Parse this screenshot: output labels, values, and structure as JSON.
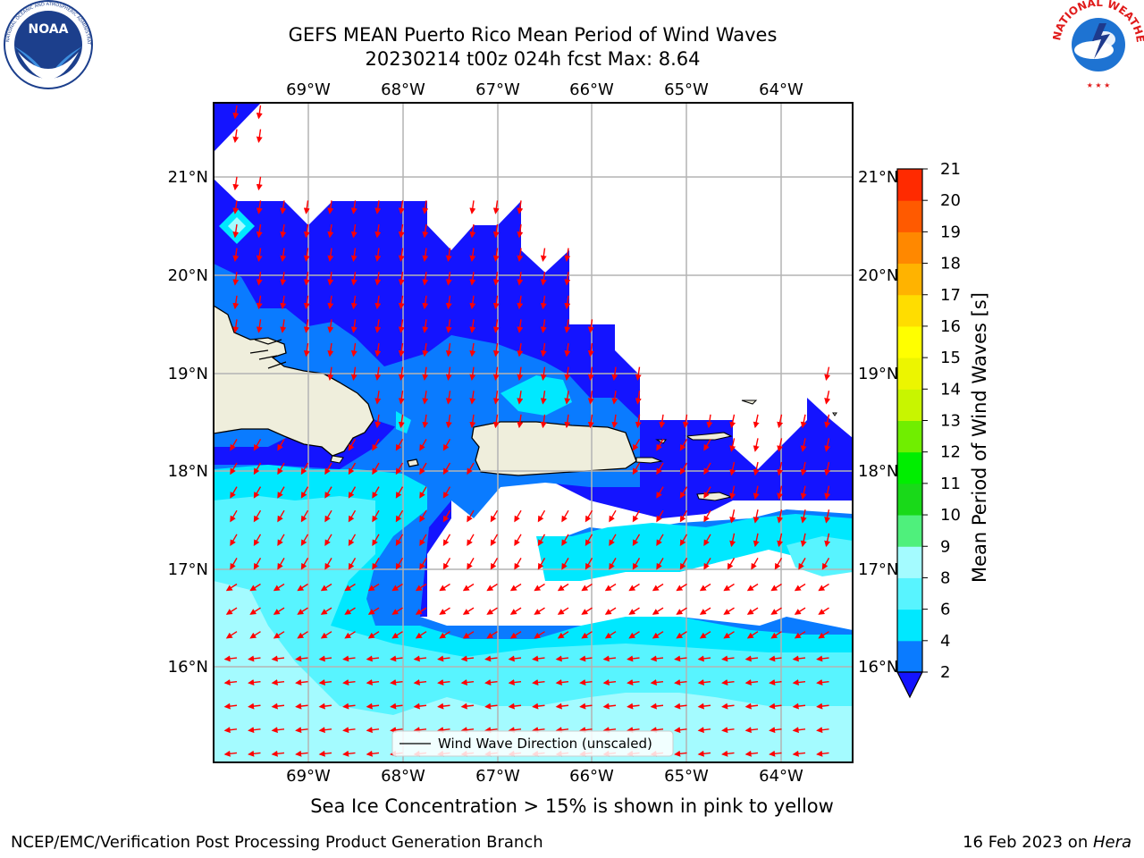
{
  "header": {
    "title_line1": "GEFS MEAN Puerto Rico Mean Period of Wind Waves",
    "title_line2": "20230214 t00z 024h fcst   Max: 8.64"
  },
  "logos": {
    "left": "NOAA",
    "left_ring_text": "NATIONAL OCEANIC AND ATMOSPHERIC ADMINISTRATION · U.S. DEPARTMENT OF COMMERCE",
    "right_ring_text": "NATIONAL WEATHER SERVICE"
  },
  "map": {
    "lon_labels": [
      "69°W",
      "68°W",
      "67°W",
      "66°W",
      "65°W",
      "64°W"
    ],
    "lat_labels": [
      "21°N",
      "20°N",
      "19°N",
      "18°N",
      "17°N",
      "16°N"
    ],
    "legend_label": "Wind Wave Direction (unscaled)",
    "arrow_color": "#ff0000",
    "land_color": "#efeedc"
  },
  "colorbar": {
    "label": "Mean Period of Wind Waves [s]",
    "ticks": [
      "2",
      "4",
      "6",
      "8",
      "9",
      "10",
      "11",
      "12",
      "13",
      "14",
      "15",
      "16",
      "17",
      "18",
      "19",
      "20",
      "21"
    ],
    "colors": [
      "#0a7bff",
      "#00e8ff",
      "#58f4ff",
      "#a4fbff",
      "#4ff07c",
      "#19d919",
      "#00ee00",
      "#70ee00",
      "#c8f500",
      "#ecf500",
      "#ffff00",
      "#ffdd00",
      "#ffb300",
      "#ff8800",
      "#ff5a00",
      "#ff2a00"
    ],
    "under_color": "#1414ff"
  },
  "footer": {
    "subtitle": "Sea Ice Concentration > 15% is shown in pink to yellow",
    "left": "NCEP/EMC/Verification Post Processing Product Generation Branch",
    "right_prefix": "16 Feb 2023 on ",
    "right_host": "Hera"
  }
}
